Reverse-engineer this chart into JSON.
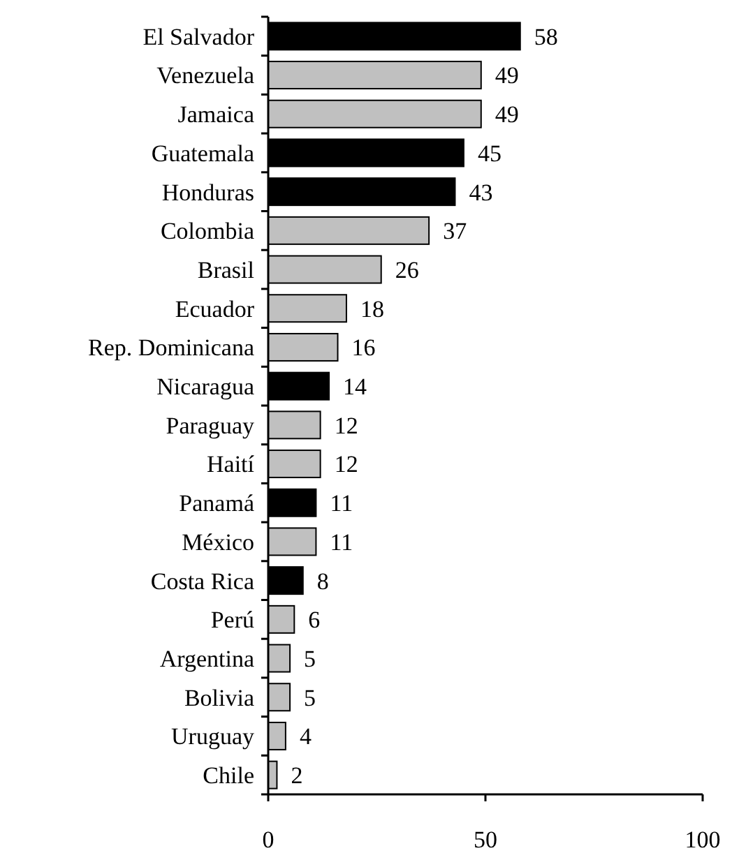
{
  "chart_data": {
    "type": "bar",
    "orientation": "horizontal",
    "categories": [
      "El Salvador",
      "Venezuela",
      "Jamaica",
      "Guatemala",
      "Honduras",
      "Colombia",
      "Brasil",
      "Ecuador",
      "Rep. Dominicana",
      "Nicaragua",
      "Paraguay",
      "Haití",
      "Panamá",
      "México",
      "Costa Rica",
      "Perú",
      "Argentina",
      "Bolivia",
      "Uruguay",
      "Chile"
    ],
    "values": [
      58,
      49,
      49,
      45,
      43,
      37,
      26,
      18,
      16,
      14,
      12,
      12,
      11,
      11,
      8,
      6,
      5,
      5,
      4,
      2
    ],
    "colors": [
      "#000000",
      "#c0c0c0",
      "#c0c0c0",
      "#000000",
      "#000000",
      "#c0c0c0",
      "#c0c0c0",
      "#c0c0c0",
      "#c0c0c0",
      "#000000",
      "#c0c0c0",
      "#c0c0c0",
      "#000000",
      "#c0c0c0",
      "#000000",
      "#c0c0c0",
      "#c0c0c0",
      "#c0c0c0",
      "#c0c0c0",
      "#c0c0c0"
    ],
    "xlim": [
      0,
      100
    ],
    "xticks": [
      0,
      50,
      100
    ],
    "data_labels": true
  }
}
